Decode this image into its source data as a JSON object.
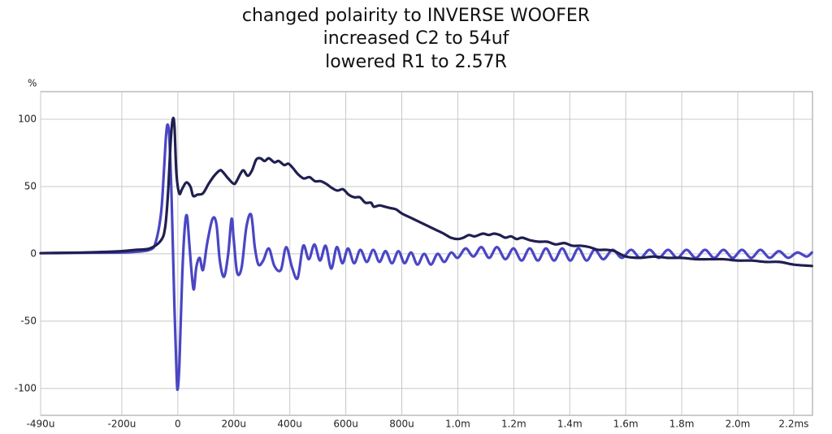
{
  "chart_data": {
    "type": "line",
    "title_lines": [
      "changed polairity to INVERSE WOOFER",
      "increased C2 to 54uf",
      "lowered R1 to 2.57R"
    ],
    "ylabel": "%",
    "xlim": [
      -490,
      2267
    ],
    "ylim": [
      -120,
      120.5
    ],
    "yticks": [
      -100,
      -50,
      0,
      50,
      100
    ],
    "xticks": [
      {
        "value": -490,
        "label": "-490u"
      },
      {
        "value": -200,
        "label": "-200u"
      },
      0,
      {
        "value": 200,
        "label": "200u"
      },
      {
        "value": 400,
        "label": "400u"
      },
      {
        "value": 600,
        "label": "600u"
      },
      {
        "value": 800,
        "label": "800u"
      },
      {
        "value": 1000,
        "label": "1.0m"
      },
      {
        "value": 1200,
        "label": "1.2m"
      },
      {
        "value": 1400,
        "label": "1.4m"
      },
      {
        "value": 1600,
        "label": "1.6m"
      },
      {
        "value": 1800,
        "label": "1.8m"
      },
      {
        "value": 2000,
        "label": "2.0m"
      },
      {
        "value": 2200,
        "label": "2.2ms"
      }
    ],
    "grid": true,
    "series": [
      {
        "color": "#4a46c4",
        "x": [
          -490,
          -400,
          -300,
          -200,
          -150,
          -100,
          -80,
          -60,
          -50,
          -42,
          -36,
          -30,
          -22,
          -12,
          -4,
          0,
          6,
          16,
          25,
          33,
          42,
          52,
          58,
          66,
          78,
          90,
          105,
          124,
          138,
          150,
          165,
          180,
          192,
          200,
          212,
          228,
          245,
          262,
          275,
          288,
          305,
          325,
          345,
          368,
          387,
          408,
          428,
          448,
          468,
          488,
          508,
          528,
          548,
          568,
          588,
          608,
          630,
          652,
          675,
          698,
          720,
          742,
          765,
          788,
          810,
          833,
          856,
          880,
          904,
          928,
          952,
          976,
          1000,
          1028,
          1056,
          1084,
          1112,
          1140,
          1170,
          1199,
          1228,
          1257,
          1286,
          1315,
          1344,
          1373,
          1402,
          1431,
          1460,
          1489,
          1520,
          1553,
          1586,
          1619,
          1652,
          1685,
          1718,
          1751,
          1784,
          1817,
          1850,
          1883,
          1916,
          1949,
          1982,
          2015,
          2048,
          2081,
          2114,
          2147,
          2180,
          2213,
          2246,
          2265
        ],
        "values": [
          0.5,
          0.6,
          0.8,
          1,
          1.5,
          3,
          8,
          30,
          60,
          88,
          96,
          85,
          40,
          -40,
          -92,
          -100,
          -80,
          -15,
          20,
          28,
          5,
          -20,
          -26,
          -10,
          -3,
          -12,
          8,
          26,
          22,
          -5,
          -17,
          0,
          26,
          10,
          -14,
          -10,
          20,
          29,
          5,
          -8,
          -5,
          4,
          -9,
          -12,
          5,
          -10,
          -18,
          6,
          -4,
          7,
          -5,
          6,
          -11,
          5,
          -7,
          4,
          -7,
          3,
          -6,
          3,
          -6,
          2,
          -7,
          2,
          -7,
          1,
          -8,
          0,
          -8,
          0,
          -6,
          1,
          -3,
          4,
          -2,
          5,
          -3,
          5,
          -4,
          4,
          -5,
          4,
          -5,
          4,
          -5,
          4,
          -5,
          4,
          -5,
          3,
          -4,
          3,
          -3,
          3,
          -3,
          3,
          -3,
          3,
          -3,
          3,
          -3,
          3,
          -3,
          3,
          -3,
          3,
          -3,
          3,
          -3,
          2,
          -3,
          1,
          -2,
          1
        ]
      },
      {
        "color": "#1f1f50",
        "x": [
          -490,
          -400,
          -300,
          -200,
          -150,
          -100,
          -60,
          -45,
          -35,
          -25,
          -18,
          -12,
          -5,
          5,
          15,
          30,
          45,
          55,
          70,
          90,
          110,
          130,
          150,
          160,
          180,
          200,
          210,
          225,
          235,
          250,
          265,
          280,
          295,
          310,
          325,
          345,
          360,
          380,
          395,
          410,
          430,
          450,
          470,
          490,
          510,
          530,
          550,
          570,
          590,
          610,
          630,
          650,
          670,
          690,
          700,
          720,
          740,
          760,
          780,
          800,
          830,
          860,
          890,
          920,
          950,
          975,
          1000,
          1020,
          1040,
          1060,
          1090,
          1110,
          1130,
          1150,
          1170,
          1190,
          1210,
          1230,
          1260,
          1290,
          1320,
          1350,
          1380,
          1410,
          1440,
          1470,
          1500,
          1530,
          1560,
          1600,
          1650,
          1700,
          1750,
          1800,
          1850,
          1900,
          1950,
          2000,
          2050,
          2100,
          2150,
          2200,
          2265
        ],
        "values": [
          0.5,
          0.8,
          1.2,
          2,
          3,
          4,
          10,
          20,
          45,
          85,
          100,
          95,
          60,
          45,
          48,
          53,
          50,
          43,
          44,
          45,
          52,
          58,
          62,
          61,
          56,
          52,
          54,
          60,
          62,
          58,
          62,
          70,
          71,
          69,
          71,
          68,
          69,
          66,
          67,
          64,
          59,
          56,
          57,
          54,
          54,
          52,
          49,
          47,
          48,
          44,
          42,
          42,
          38,
          38,
          35,
          36,
          35,
          34,
          33,
          30,
          27,
          24,
          21,
          18,
          15,
          12,
          11,
          12,
          14,
          13,
          15,
          14,
          15,
          14,
          12,
          13,
          11,
          12,
          10,
          9,
          9,
          7,
          8,
          6,
          6,
          5,
          3,
          3,
          2,
          -2,
          -3,
          -2,
          -3,
          -3,
          -4,
          -4,
          -4,
          -5,
          -5,
          -6,
          -6,
          -8,
          -9
        ]
      }
    ]
  }
}
